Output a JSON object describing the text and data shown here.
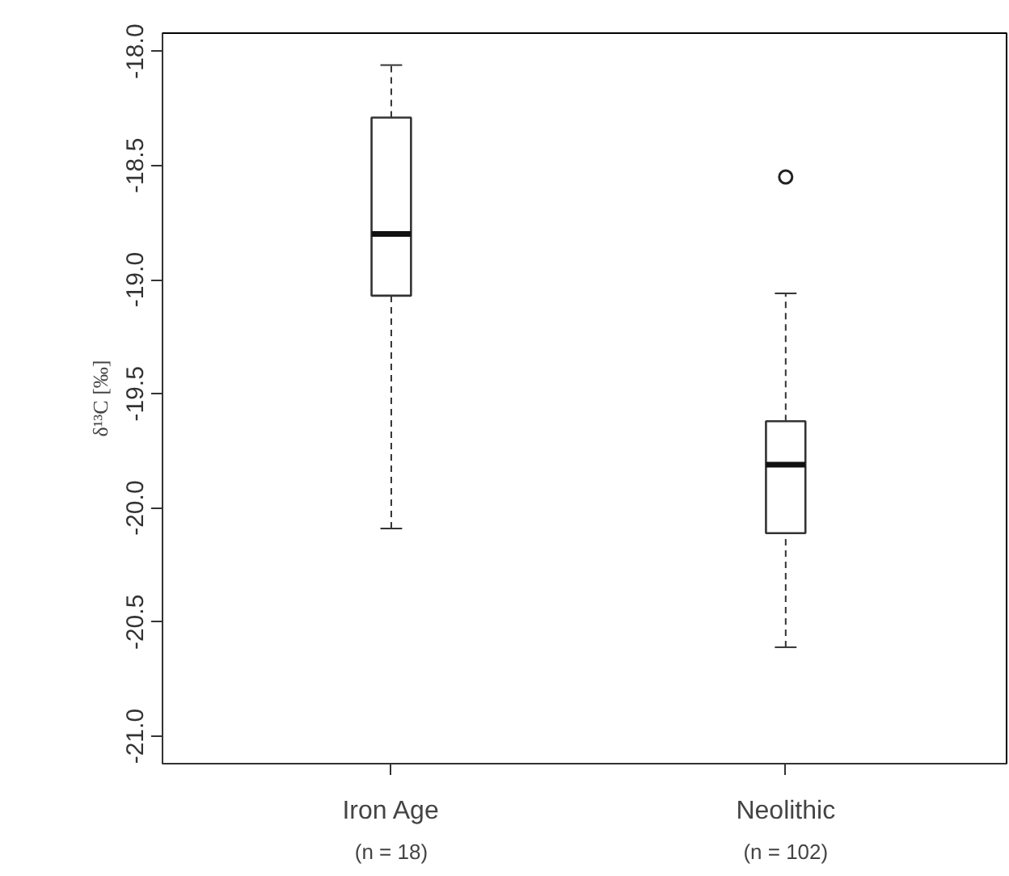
{
  "chart_data": {
    "type": "box",
    "ylabel": "δ¹³C [‰]",
    "categories": [
      "Iron Age",
      "Neolithic"
    ],
    "boxes": [
      {
        "low": -20.09,
        "q1": -19.07,
        "median": -18.8,
        "q3": -18.29,
        "high": -18.06
      },
      {
        "low": -20.61,
        "q1": -20.11,
        "median": -19.81,
        "q3": -19.62,
        "high": -19.06,
        "outliers": [
          -18.55
        ]
      }
    ],
    "ylim": [
      -21.12,
      -17.92
    ],
    "yticks": [
      {
        "value": -21,
        "label": "-21.0"
      },
      -20.5,
      {
        "value": -20,
        "label": "-20.0"
      },
      -19.5,
      {
        "value": -19,
        "label": "-19.0"
      },
      -18.5,
      {
        "value": -18,
        "label": "-18.0"
      }
    ],
    "annotations": [
      "(n = 18)",
      "(n = 102)"
    ],
    "grid": false
  }
}
